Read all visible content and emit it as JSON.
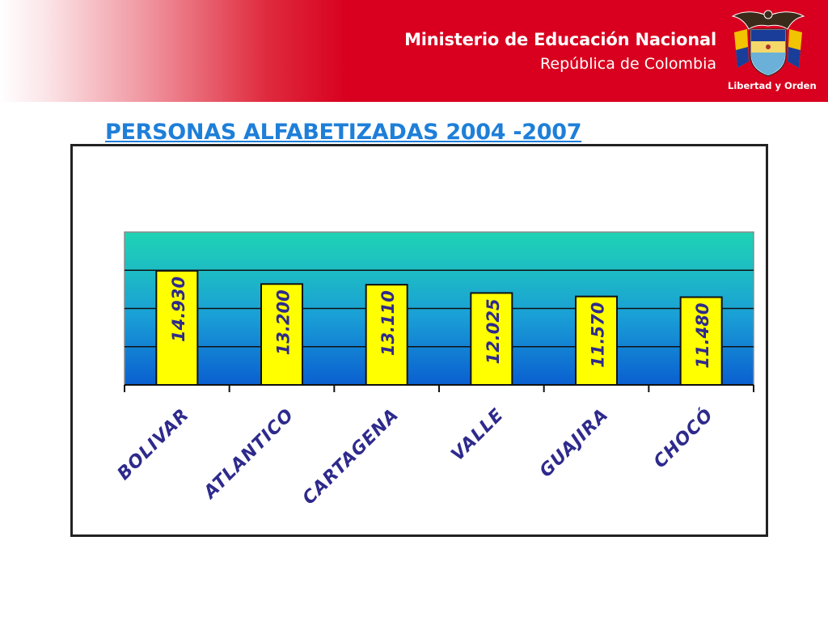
{
  "header": {
    "ministry": "Ministerio de Educación Nacional",
    "country": "República de Colombia",
    "motto": "Libertad y Orden"
  },
  "colors": {
    "banner_red": "#d8001e",
    "title_blue": "#1e7fd9",
    "bar_yellow": "#ffff00",
    "label_navy": "#2e2a8c",
    "plot_top": "#1fd4b4",
    "plot_bottom": "#0a5fd0"
  },
  "chart_data": {
    "type": "bar",
    "title": "PERSONAS ALFABETIZADAS 2004 -2007",
    "categories": [
      "BOLIVAR",
      "ATLANTICO",
      "CARTAGENA",
      "VALLE",
      "GUAJIRA",
      "CHOCÓ"
    ],
    "values": [
      14930,
      13200,
      13110,
      12025,
      11570,
      11480
    ],
    "value_labels": [
      "14.930",
      "13.200",
      "13.110",
      "12.025",
      "11.570",
      "11.480"
    ],
    "xlabel": "",
    "ylabel": "",
    "ylim": [
      0,
      20000
    ],
    "grid": true,
    "legend": "none"
  }
}
